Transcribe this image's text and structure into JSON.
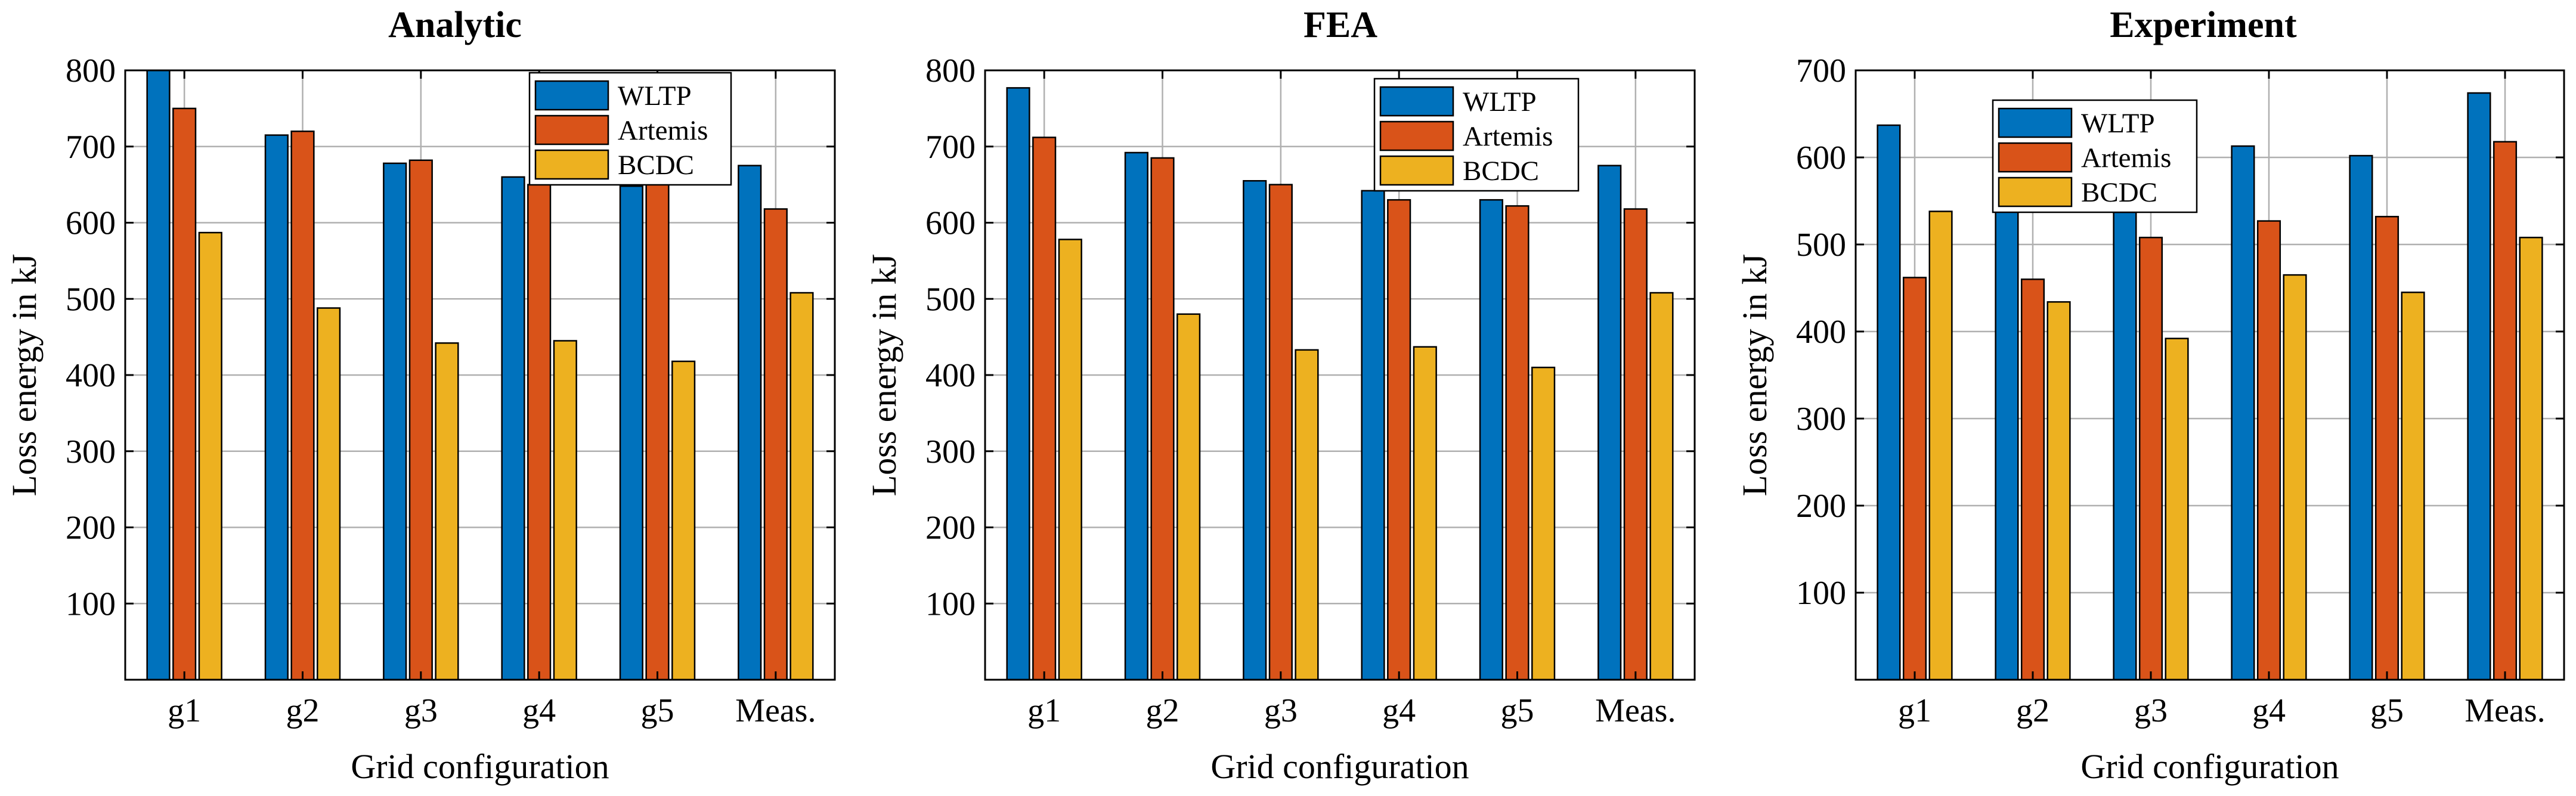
{
  "chart_data": [
    {
      "type": "bar",
      "title": "Analytic",
      "xlabel": "Grid configuration",
      "ylabel": "Loss energy in kJ",
      "categories": [
        "g1",
        "g2",
        "g3",
        "g4",
        "g5",
        "Meas."
      ],
      "ylim": [
        0,
        800
      ],
      "yticks": [
        100,
        200,
        300,
        400,
        500,
        600,
        700,
        800
      ],
      "grid": true,
      "legend_position": "top-right",
      "series": [
        {
          "name": "WLTP",
          "color": "#0072BD",
          "values": [
            800,
            715,
            678,
            660,
            648,
            675
          ]
        },
        {
          "name": "Artemis",
          "color": "#D95319",
          "values": [
            750,
            720,
            682,
            650,
            650,
            618
          ]
        },
        {
          "name": "BCDC",
          "color": "#EDB120",
          "values": [
            587,
            488,
            442,
            445,
            418,
            508
          ]
        }
      ]
    },
    {
      "type": "bar",
      "title": "FEA",
      "xlabel": "Grid configuration",
      "ylabel": "Loss energy in kJ",
      "categories": [
        "g1",
        "g2",
        "g3",
        "g4",
        "g5",
        "Meas."
      ],
      "ylim": [
        0,
        800
      ],
      "yticks": [
        100,
        200,
        300,
        400,
        500,
        600,
        700,
        800
      ],
      "grid": true,
      "legend_position": "top-right",
      "series": [
        {
          "name": "WLTP",
          "color": "#0072BD",
          "values": [
            777,
            692,
            655,
            642,
            630,
            675
          ]
        },
        {
          "name": "Artemis",
          "color": "#D95319",
          "values": [
            712,
            685,
            650,
            630,
            622,
            618
          ]
        },
        {
          "name": "BCDC",
          "color": "#EDB120",
          "values": [
            578,
            480,
            433,
            437,
            410,
            508
          ]
        }
      ]
    },
    {
      "type": "bar",
      "title": "Experiment",
      "xlabel": "Grid configuration",
      "ylabel": "Loss energy in kJ",
      "categories": [
        "g1",
        "g2",
        "g3",
        "g4",
        "g5",
        "Meas."
      ],
      "ylim": [
        0,
        700
      ],
      "yticks": [
        100,
        200,
        300,
        400,
        500,
        600,
        700
      ],
      "grid": true,
      "legend_position": "top-left",
      "series": [
        {
          "name": "WLTP",
          "color": "#0072BD",
          "values": [
            637,
            545,
            537,
            613,
            602,
            674
          ]
        },
        {
          "name": "Artemis",
          "color": "#D95319",
          "values": [
            462,
            460,
            508,
            527,
            532,
            618
          ]
        },
        {
          "name": "BCDC",
          "color": "#EDB120",
          "values": [
            538,
            434,
            392,
            465,
            445,
            508
          ]
        }
      ]
    }
  ]
}
